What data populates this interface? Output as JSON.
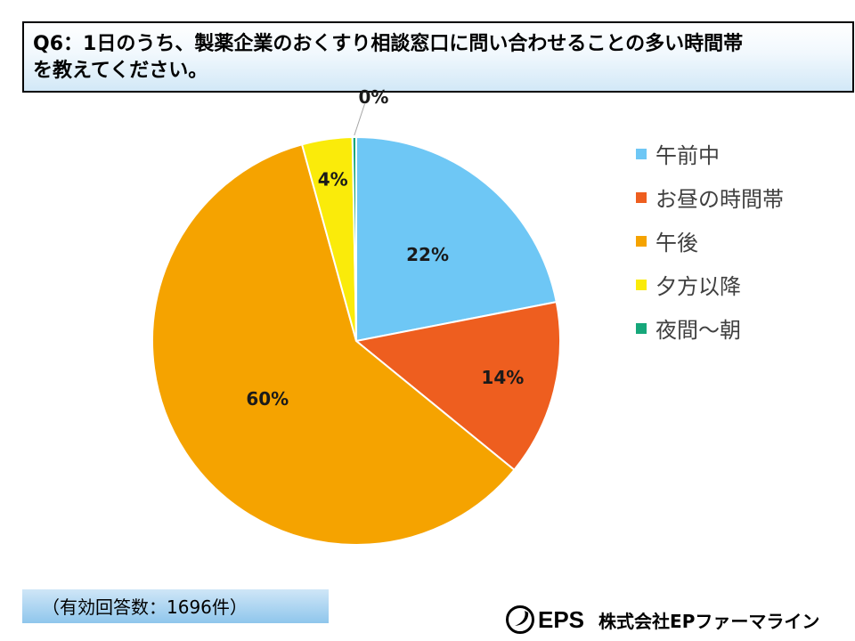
{
  "title": {
    "line1": "Q6：1日のうち、製薬企業のおくすり相談窓口に問い合わせることの多い時間帯",
    "line2": "を教えてください。"
  },
  "chart_data": {
    "type": "pie",
    "start_angle_deg": 0,
    "direction": "clockwise",
    "slices": [
      {
        "name": "午前中",
        "value": 22,
        "label": "22%",
        "color": "#6ec7f5"
      },
      {
        "name": "お昼の時間帯",
        "value": 14,
        "label": "14%",
        "color": "#ee5e1f"
      },
      {
        "name": "午後",
        "value": 60,
        "label": "60%",
        "color": "#f5a300"
      },
      {
        "name": "夕方以降",
        "value": 4,
        "label": "4%",
        "color": "#faeb0a"
      },
      {
        "name": "夜間～朝",
        "value": 0.3,
        "label": "0%",
        "color": "#16a77a"
      }
    ],
    "legend_position": "right"
  },
  "footnote": "（有効回答数：1696件）",
  "brand": {
    "logo_text": "EPS",
    "company": "株式会社EPファーマライン"
  }
}
